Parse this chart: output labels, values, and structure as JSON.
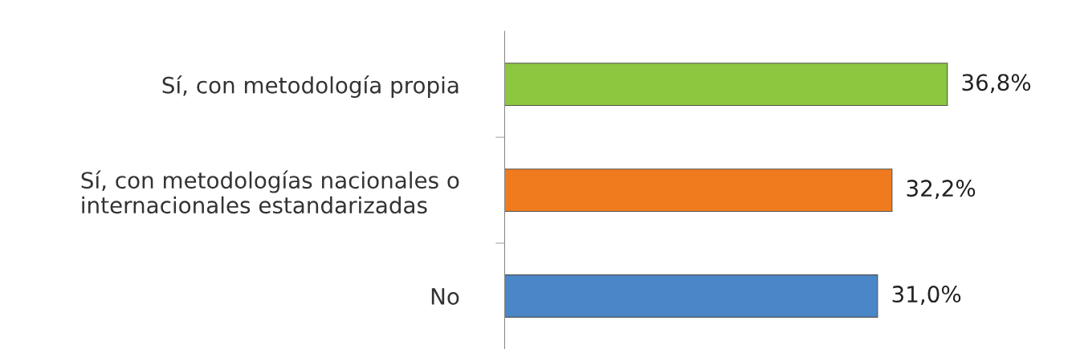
{
  "chart_data": {
    "type": "bar",
    "orientation": "horizontal",
    "categories": [
      "Sí, con metodología propia",
      "Sí, con metodologías nacionales o\ninternacionales estandarizadas",
      "No"
    ],
    "values": [
      36.8,
      32.2,
      31.0
    ],
    "value_labels": [
      "36,8%",
      "32,2%",
      "31,0%"
    ],
    "colors": [
      "#8dc63f",
      "#f07b1e",
      "#4a86c8"
    ],
    "tick_labels": "y",
    "grid": false,
    "legend": false
  }
}
